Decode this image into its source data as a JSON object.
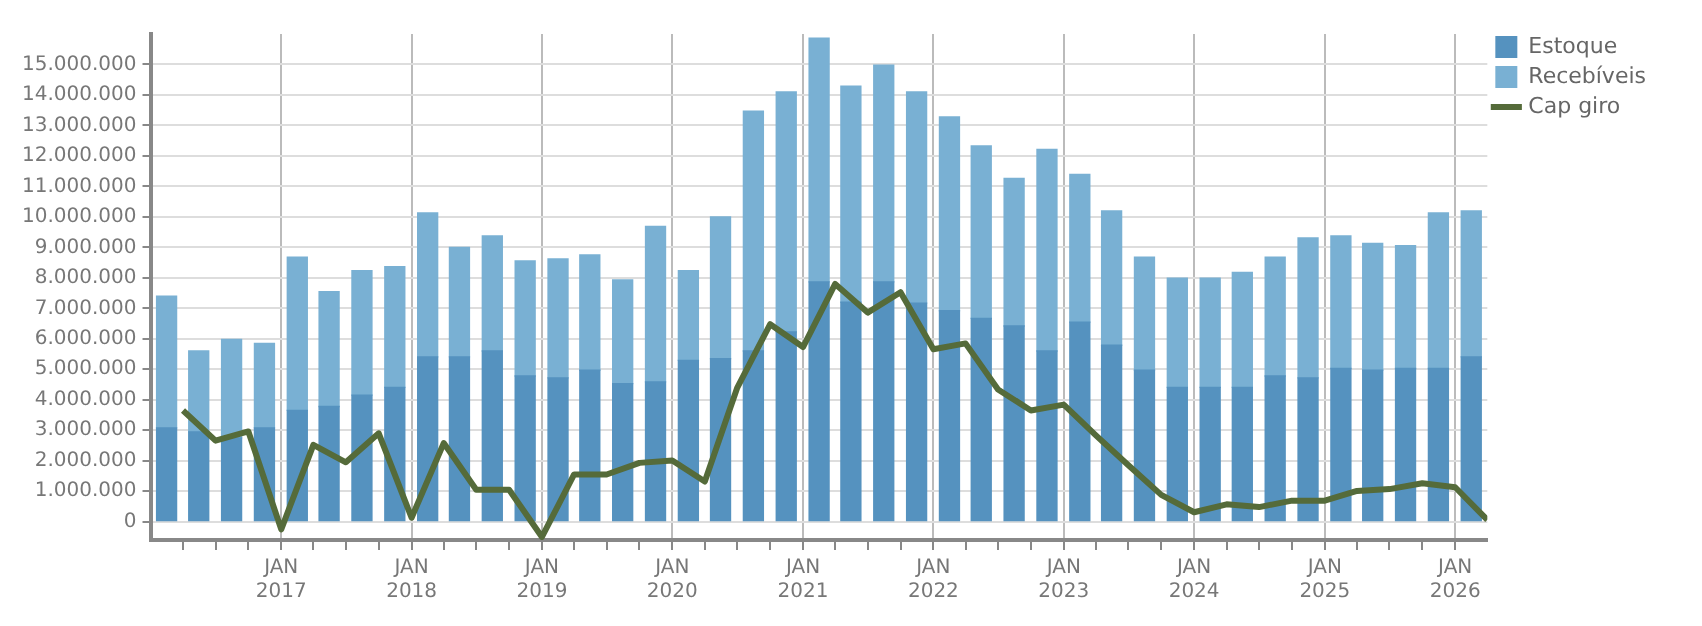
{
  "chart_data": {
    "type": "bar",
    "stacked": true,
    "x": [
      "2016-02-15",
      "2016-05-15",
      "2016-08-15",
      "2016-11-15",
      "2017-02-15",
      "2017-05-15",
      "2017-08-15",
      "2017-11-15",
      "2018-02-15",
      "2018-05-15",
      "2018-08-15",
      "2018-11-15",
      "2019-02-15",
      "2019-05-15",
      "2019-08-15",
      "2019-11-15",
      "2020-02-15",
      "2020-05-15",
      "2020-08-15",
      "2020-11-15",
      "2021-02-15",
      "2021-05-15",
      "2021-08-15",
      "2021-11-15",
      "2022-02-15",
      "2022-05-15",
      "2022-08-15",
      "2022-11-15",
      "2023-02-15",
      "2023-05-15",
      "2023-08-15",
      "2023-11-15",
      "2024-02-15",
      "2024-05-15",
      "2024-08-15",
      "2024-11-15",
      "2025-02-15",
      "2025-05-15",
      "2025-08-15",
      "2025-11-15",
      "2026-02-15"
    ],
    "series": [
      {
        "name": "Estoque",
        "color": "#5592bf",
        "values": [
          3080000,
          2950000,
          2750000,
          3080000,
          3650000,
          3780000,
          4150000,
          4410000,
          5410000,
          5410000,
          5600000,
          4780000,
          4720000,
          4970000,
          4530000,
          4590000,
          5290000,
          5350000,
          5600000,
          6230000,
          7870000,
          7200000,
          7870000,
          7170000,
          6920000,
          6670000,
          6420000,
          5600000,
          6550000,
          5790000,
          4970000,
          4410000,
          4410000,
          4410000,
          4780000,
          4720000,
          5030000,
          4970000,
          5030000,
          5030000,
          5410000
        ]
      },
      {
        "name": "Recebíveis",
        "color": "#79b0d3",
        "values": [
          4320000,
          2650000,
          3230000,
          2770000,
          5030000,
          3770000,
          4090000,
          3960000,
          4720000,
          3590000,
          3780000,
          3780000,
          3900000,
          3780000,
          3400000,
          5100000,
          2950000,
          4650000,
          7870000,
          7870000,
          7990000,
          7090000,
          7110000,
          6930000,
          6360000,
          5660000,
          4840000,
          6610000,
          4840000,
          4410000,
          3710000,
          3580000,
          3580000,
          3770000,
          3900000,
          4590000,
          4350000,
          4160000,
          4030000,
          5100000,
          4790000
        ]
      },
      {
        "name": "Cap giro",
        "type": "line",
        "color": "#556b3a",
        "x": [
          "2016-04-01",
          "2016-07-01",
          "2016-10-01",
          "2017-01-01",
          "2017-04-01",
          "2017-07-01",
          "2017-10-01",
          "2018-01-01",
          "2018-04-01",
          "2018-07-01",
          "2018-10-01",
          "2019-01-01",
          "2019-04-01",
          "2019-07-01",
          "2019-10-01",
          "2020-01-01",
          "2020-04-01",
          "2020-07-01",
          "2020-10-01",
          "2021-01-01",
          "2021-04-01",
          "2021-07-01",
          "2021-10-01",
          "2022-01-01",
          "2022-04-01",
          "2022-07-01",
          "2022-10-01",
          "2023-01-01",
          "2023-04-01",
          "2023-07-01",
          "2023-10-01",
          "2024-01-01",
          "2024-04-01",
          "2024-07-01",
          "2024-10-01",
          "2025-01-01",
          "2025-04-01",
          "2025-07-01",
          "2025-10-01",
          "2026-01-01",
          "2026-04-01"
        ],
        "values": [
          3650000,
          2660000,
          2960000,
          -250000,
          2520000,
          1950000,
          2900000,
          130000,
          2580000,
          1050000,
          1050000,
          -500000,
          1550000,
          1550000,
          1930000,
          2010000,
          1320000,
          4400000,
          6480000,
          5730000,
          7800000,
          6860000,
          7530000,
          5660000,
          5850000,
          4340000,
          3650000,
          3840000,
          2830000,
          1850000,
          880000,
          310000,
          570000,
          480000,
          690000,
          690000,
          1010000,
          1070000,
          1260000,
          1130000,
          60000
        ]
      }
    ],
    "xlim": [
      "2016-01-01",
      "2026-04-01"
    ],
    "xticks": [
      {
        "value": "2016-04-01",
        "label": null
      },
      {
        "value": "2016-07-01",
        "label": null
      },
      {
        "value": "2016-10-01",
        "label": null
      },
      {
        "value": "2017-01-01",
        "label": "JAN 2017"
      },
      {
        "value": "2017-04-01",
        "label": null
      },
      {
        "value": "2017-07-01",
        "label": null
      },
      {
        "value": "2017-10-01",
        "label": null
      },
      {
        "value": "2018-01-01",
        "label": "JAN 2018"
      },
      {
        "value": "2018-04-01",
        "label": null
      },
      {
        "value": "2018-07-01",
        "label": null
      },
      {
        "value": "2018-10-01",
        "label": null
      },
      {
        "value": "2019-01-01",
        "label": "JAN 2019"
      },
      {
        "value": "2019-04-01",
        "label": null
      },
      {
        "value": "2019-07-01",
        "label": null
      },
      {
        "value": "2019-10-01",
        "label": null
      },
      {
        "value": "2020-01-01",
        "label": "JAN 2020"
      },
      {
        "value": "2020-04-01",
        "label": null
      },
      {
        "value": "2020-07-01",
        "label": null
      },
      {
        "value": "2020-10-01",
        "label": null
      },
      {
        "value": "2021-01-01",
        "label": "JAN 2021"
      },
      {
        "value": "2021-04-01",
        "label": null
      },
      {
        "value": "2021-07-01",
        "label": null
      },
      {
        "value": "2021-10-01",
        "label": null
      },
      {
        "value": "2022-01-01",
        "label": "JAN 2022"
      },
      {
        "value": "2022-04-01",
        "label": null
      },
      {
        "value": "2022-07-01",
        "label": null
      },
      {
        "value": "2022-10-01",
        "label": null
      },
      {
        "value": "2023-01-01",
        "label": "JAN 2023"
      },
      {
        "value": "2023-04-01",
        "label": null
      },
      {
        "value": "2023-07-01",
        "label": null
      },
      {
        "value": "2023-10-01",
        "label": null
      },
      {
        "value": "2024-01-01",
        "label": "JAN 2024"
      },
      {
        "value": "2024-04-01",
        "label": null
      },
      {
        "value": "2024-07-01",
        "label": null
      },
      {
        "value": "2024-10-01",
        "label": null
      },
      {
        "value": "2025-01-01",
        "label": "JAN 2025"
      },
      {
        "value": "2025-04-01",
        "label": null
      },
      {
        "value": "2025-07-01",
        "label": null
      },
      {
        "value": "2025-10-01",
        "label": null
      },
      {
        "value": "2026-01-01",
        "label": "JAN 2026"
      }
    ],
    "ylim": [
      -600000,
      16000000
    ],
    "yticks": [
      {
        "value": 0,
        "label": "0"
      },
      {
        "value": 1000000,
        "label": "1.000.000"
      },
      {
        "value": 2000000,
        "label": "2.000.000"
      },
      {
        "value": 3000000,
        "label": "3.000.000"
      },
      {
        "value": 4000000,
        "label": "4.000.000"
      },
      {
        "value": 5000000,
        "label": "5.000.000"
      },
      {
        "value": 6000000,
        "label": "6.000.000"
      },
      {
        "value": 7000000,
        "label": "7.000.000"
      },
      {
        "value": 8000000,
        "label": "8.000.000"
      },
      {
        "value": 9000000,
        "label": "9.000.000"
      },
      {
        "value": 10000000,
        "label": "10.000.000"
      },
      {
        "value": 11000000,
        "label": "11.000.000"
      },
      {
        "value": 12000000,
        "label": "12.000.000"
      },
      {
        "value": 13000000,
        "label": "13.000.000"
      },
      {
        "value": 14000000,
        "label": "14.000.000"
      },
      {
        "value": 15000000,
        "label": "15.000.000"
      }
    ],
    "grid": true,
    "legend": "top right",
    "marker": "none",
    "line_style": "solid"
  }
}
